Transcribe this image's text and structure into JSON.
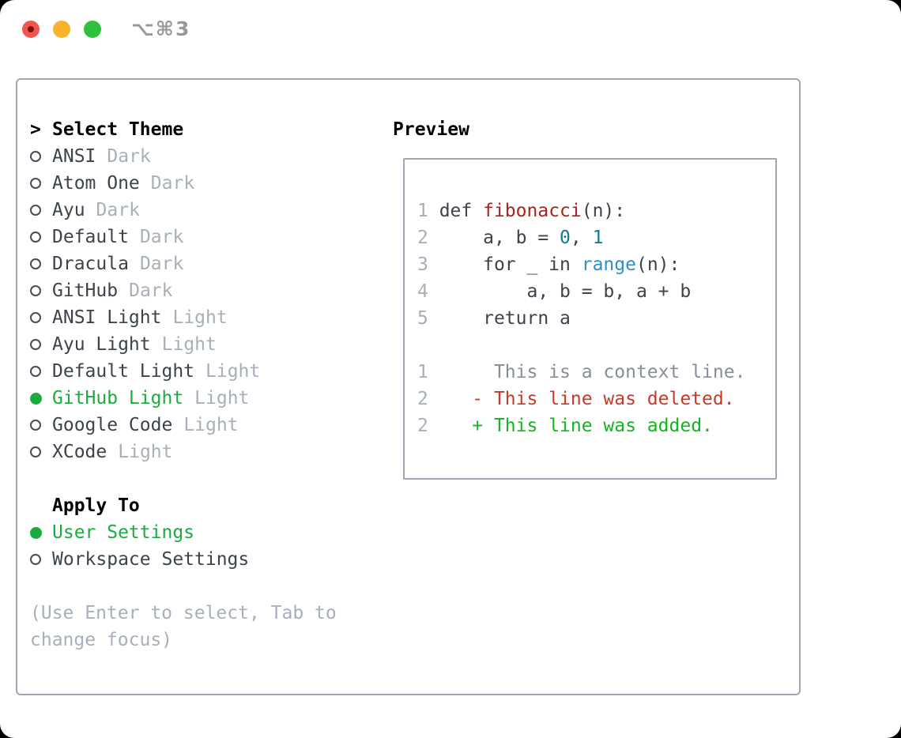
{
  "window": {
    "title_shortcut": "⌥⌘3"
  },
  "traffic_lights": [
    {
      "name": "close"
    },
    {
      "name": "minimize"
    },
    {
      "name": "zoom"
    }
  ],
  "theme_selector": {
    "prompt_marker": ">",
    "title": "Select Theme",
    "items": [
      {
        "name": "ANSI",
        "variant": "Dark",
        "selected": false
      },
      {
        "name": "Atom One",
        "variant": "Dark",
        "selected": false
      },
      {
        "name": "Ayu",
        "variant": "Dark",
        "selected": false
      },
      {
        "name": "Default",
        "variant": "Dark",
        "selected": false
      },
      {
        "name": "Dracula",
        "variant": "Dark",
        "selected": false
      },
      {
        "name": "GitHub",
        "variant": "Dark",
        "selected": false
      },
      {
        "name": "ANSI Light",
        "variant": "Light",
        "selected": false
      },
      {
        "name": "Ayu Light",
        "variant": "Light",
        "selected": false
      },
      {
        "name": "Default Light",
        "variant": "Light",
        "selected": false
      },
      {
        "name": "GitHub Light",
        "variant": "Light",
        "selected": true
      },
      {
        "name": "Google Code",
        "variant": "Light",
        "selected": false
      },
      {
        "name": "XCode",
        "variant": "Light",
        "selected": false
      }
    ],
    "apply_to": {
      "title": "Apply To",
      "options": [
        {
          "label": "User Settings",
          "selected": true
        },
        {
          "label": "Workspace Settings",
          "selected": false
        }
      ]
    },
    "hint_lines": [
      "(Use Enter to select, Tab to",
      "change focus)"
    ]
  },
  "preview": {
    "title": "Preview",
    "lines": [
      {
        "num": "1",
        "tokens": [
          {
            "t": " def ",
            "c": "fg"
          },
          {
            "t": "fibonacci",
            "c": "fn"
          },
          {
            "t": "(n):",
            "c": "fg"
          }
        ]
      },
      {
        "num": "2",
        "tokens": [
          {
            "t": "     a, b = ",
            "c": "fg"
          },
          {
            "t": "0",
            "c": "num"
          },
          {
            "t": ", ",
            "c": "fg"
          },
          {
            "t": "1",
            "c": "num"
          }
        ]
      },
      {
        "num": "3",
        "tokens": [
          {
            "t": "     for _ in ",
            "c": "fg"
          },
          {
            "t": "range",
            "c": "bi"
          },
          {
            "t": "(n):",
            "c": "fg"
          }
        ]
      },
      {
        "num": "4",
        "tokens": [
          {
            "t": "         a, b = b, a + b",
            "c": "fg"
          }
        ]
      },
      {
        "num": "5",
        "tokens": [
          {
            "t": "     return a",
            "c": "fg"
          }
        ]
      },
      {
        "num": "",
        "tokens": []
      },
      {
        "num": "1",
        "tokens": [
          {
            "t": "      This is a context line.",
            "c": "ctx"
          }
        ]
      },
      {
        "num": "2",
        "tokens": [
          {
            "t": "    - This line was deleted.",
            "c": "del"
          }
        ]
      },
      {
        "num": "2",
        "tokens": [
          {
            "t": "    + This line was added.",
            "c": "add"
          }
        ]
      }
    ]
  },
  "colors": {
    "selected_green": "#1aac3f",
    "added_green": "#15b421",
    "deleted_red": "#c43b2b",
    "function_red": "#a8241f",
    "number_teal": "#0c7f89",
    "builtin_blue": "#2b8fce",
    "muted_gray": "#a7b0ba",
    "panel_border": "#9fa8b2"
  }
}
